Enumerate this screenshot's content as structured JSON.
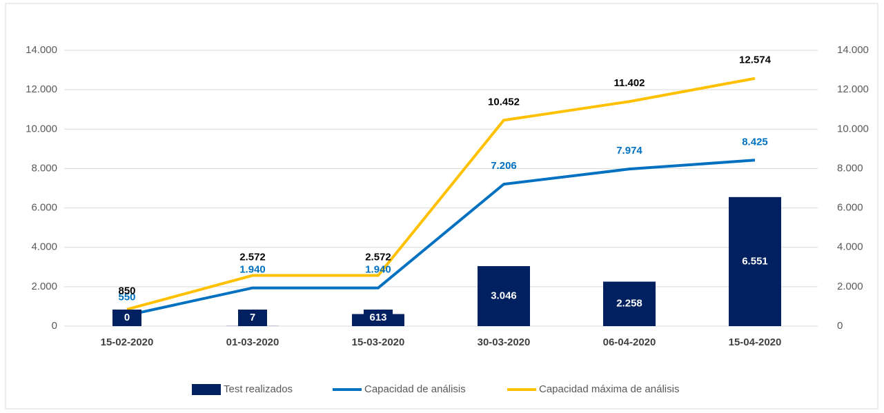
{
  "chart_data": {
    "type": "bar_line",
    "categories": [
      "15-02-2020",
      "01-03-2020",
      "15-03-2020",
      "30-03-2020",
      "06-04-2020",
      "15-04-2020"
    ],
    "series": [
      {
        "name": "Test realizados",
        "type": "bar",
        "color": "#002060",
        "values": [
          0,
          7,
          613,
          3046,
          2258,
          6551
        ],
        "value_labels": [
          "0",
          "7",
          "613",
          "3.046",
          "2.258",
          "6.551"
        ]
      },
      {
        "name": "Capacidad de análisis",
        "type": "line",
        "axis": "y2",
        "color": "#0070c0",
        "values": [
          550,
          1940,
          1940,
          7206,
          7974,
          8425
        ],
        "value_labels": [
          "550",
          "1.940",
          "1.940",
          "7.206",
          "7.974",
          "8.425"
        ]
      },
      {
        "name": "Capacidad máxima de análisis",
        "type": "line",
        "axis": "y2",
        "color": "#ffc000",
        "values": [
          850,
          2572,
          2572,
          10452,
          11402,
          12574
        ],
        "value_labels": [
          "850",
          "2.572",
          "2.572",
          "10.452",
          "11.402",
          "12.574"
        ]
      }
    ],
    "ylim": [
      0,
      14000
    ],
    "yticks": [
      0,
      {
        "value": 2000,
        "label": "2.000"
      },
      {
        "value": 4000,
        "label": "4.000"
      },
      {
        "value": 6000,
        "label": "6.000"
      },
      {
        "value": 8000,
        "label": "8.000"
      },
      {
        "value": 10000,
        "label": "10.000"
      },
      {
        "value": 12000,
        "label": "12.000"
      },
      {
        "value": 14000,
        "label": "14.000"
      }
    ],
    "y2lim": [
      0,
      14000
    ],
    "y2ticks": [
      0,
      {
        "value": 2000,
        "label": "2.000"
      },
      {
        "value": 4000,
        "label": "4.000"
      },
      {
        "value": 6000,
        "label": "6.000"
      },
      {
        "value": 8000,
        "label": "8.000"
      },
      {
        "value": 10000,
        "label": "10.000"
      },
      {
        "value": 12000,
        "label": "12.000"
      },
      {
        "value": 14000,
        "label": "14.000"
      }
    ],
    "grid": true,
    "legend": "bottom"
  }
}
